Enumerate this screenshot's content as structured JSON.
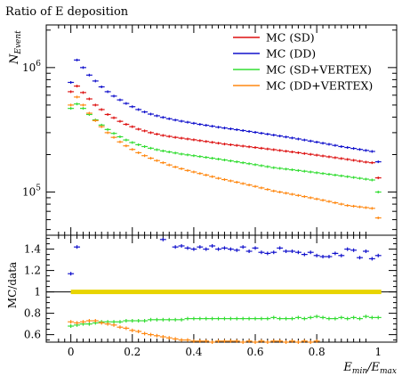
{
  "chart_data": [
    {
      "type": "scatter",
      "title": "Ratio of E deposition",
      "ylabel_main": "N",
      "ylabel_sub": "Event",
      "yscale": "log",
      "ylim": [
        45000,
        2200000
      ],
      "xlim": [
        -0.08,
        1.06
      ],
      "yticks_major": [
        {
          "value": 100000,
          "base": "10",
          "exp": "5"
        },
        {
          "value": 1000000,
          "base": "10",
          "exp": "6"
        }
      ],
      "legend_position": "top-right",
      "series": [
        {
          "name": "MC (SD)",
          "color": "#dd1111",
          "x": [
            0.0,
            0.02,
            0.04,
            0.06,
            0.08,
            0.1,
            0.12,
            0.14,
            0.16,
            0.18,
            0.2,
            0.22,
            0.24,
            0.26,
            0.28,
            0.3,
            0.32,
            0.34,
            0.36,
            0.38,
            0.4,
            0.42,
            0.44,
            0.46,
            0.48,
            0.5,
            0.52,
            0.54,
            0.56,
            0.58,
            0.6,
            0.62,
            0.64,
            0.66,
            0.68,
            0.7,
            0.72,
            0.74,
            0.76,
            0.78,
            0.8,
            0.82,
            0.84,
            0.86,
            0.88,
            0.9,
            0.92,
            0.94,
            0.96,
            0.98,
            1.0
          ],
          "y": [
            640000,
            710000,
            630000,
            560000,
            500000,
            460000,
            420000,
            395000,
            370000,
            350000,
            335000,
            320000,
            310000,
            300000,
            292000,
            285000,
            280000,
            275000,
            271000,
            267000,
            263000,
            259000,
            255000,
            251000,
            247000,
            243000,
            240000,
            237000,
            234000,
            231000,
            228000,
            225000,
            222000,
            219000,
            216000,
            213000,
            210000,
            207000,
            204000,
            201000,
            198000,
            195000,
            192000,
            189000,
            186000,
            183000,
            180000,
            177000,
            174000,
            172000,
            130000
          ]
        },
        {
          "name": "MC (DD)",
          "color": "#1111cc",
          "x": [
            0.0,
            0.02,
            0.04,
            0.06,
            0.08,
            0.1,
            0.12,
            0.14,
            0.16,
            0.18,
            0.2,
            0.22,
            0.24,
            0.26,
            0.28,
            0.3,
            0.32,
            0.34,
            0.36,
            0.38,
            0.4,
            0.42,
            0.44,
            0.46,
            0.48,
            0.5,
            0.52,
            0.54,
            0.56,
            0.58,
            0.6,
            0.62,
            0.64,
            0.66,
            0.68,
            0.7,
            0.72,
            0.74,
            0.76,
            0.78,
            0.8,
            0.82,
            0.84,
            0.86,
            0.88,
            0.9,
            0.92,
            0.94,
            0.96,
            0.98,
            1.0
          ],
          "y": [
            760000,
            1150000,
            1000000,
            870000,
            780000,
            700000,
            640000,
            590000,
            550000,
            515000,
            485000,
            460000,
            440000,
            423000,
            410000,
            398000,
            388000,
            379000,
            371000,
            364000,
            357000,
            350000,
            344000,
            338000,
            332000,
            327000,
            322000,
            317000,
            312000,
            307000,
            302000,
            297000,
            292000,
            287000,
            282000,
            277000,
            272000,
            267000,
            262000,
            257000,
            252000,
            247000,
            242000,
            237000,
            232000,
            228000,
            224000,
            220000,
            216000,
            212000,
            175000
          ]
        },
        {
          "name": "MC (SD+VERTEX)",
          "color": "#33dd33",
          "x": [
            0.0,
            0.02,
            0.04,
            0.06,
            0.08,
            0.1,
            0.12,
            0.14,
            0.16,
            0.18,
            0.2,
            0.22,
            0.24,
            0.26,
            0.28,
            0.3,
            0.32,
            0.34,
            0.36,
            0.38,
            0.4,
            0.42,
            0.44,
            0.46,
            0.48,
            0.5,
            0.52,
            0.54,
            0.56,
            0.58,
            0.6,
            0.62,
            0.64,
            0.66,
            0.68,
            0.7,
            0.72,
            0.74,
            0.76,
            0.78,
            0.8,
            0.82,
            0.84,
            0.86,
            0.88,
            0.9,
            0.92,
            0.94,
            0.96,
            0.98,
            1.0
          ],
          "y": [
            470000,
            510000,
            470000,
            420000,
            380000,
            345000,
            318000,
            296000,
            278000,
            262000,
            250000,
            240000,
            232000,
            225000,
            219000,
            214000,
            210000,
            206000,
            202000,
            199000,
            196000,
            193000,
            190000,
            187000,
            184000,
            181000,
            178000,
            175000,
            172000,
            169000,
            166000,
            163000,
            160000,
            157000,
            155000,
            153000,
            151000,
            149000,
            147000,
            145000,
            143000,
            141000,
            139000,
            137000,
            135000,
            133000,
            131000,
            129000,
            127000,
            125000,
            100000
          ]
        },
        {
          "name": "MC (DD+VERTEX)",
          "color": "#ff8811",
          "x": [
            0.0,
            0.02,
            0.04,
            0.06,
            0.08,
            0.1,
            0.12,
            0.14,
            0.16,
            0.18,
            0.2,
            0.22,
            0.24,
            0.26,
            0.28,
            0.3,
            0.32,
            0.34,
            0.36,
            0.38,
            0.4,
            0.42,
            0.44,
            0.46,
            0.48,
            0.5,
            0.52,
            0.54,
            0.56,
            0.58,
            0.6,
            0.62,
            0.64,
            0.66,
            0.68,
            0.7,
            0.72,
            0.74,
            0.76,
            0.78,
            0.8,
            0.82,
            0.84,
            0.86,
            0.88,
            0.9,
            0.92,
            0.94,
            0.96,
            0.98,
            1.0
          ],
          "y": [
            500000,
            580000,
            500000,
            430000,
            375000,
            335000,
            300000,
            275000,
            253000,
            235000,
            220000,
            207000,
            196000,
            187000,
            179000,
            172000,
            165000,
            159000,
            154000,
            149000,
            145000,
            141000,
            137000,
            133000,
            129000,
            126000,
            123000,
            120000,
            117000,
            114000,
            111000,
            108000,
            105000,
            102000,
            100000,
            98000,
            96000,
            94000,
            92000,
            90000,
            88000,
            86000,
            84000,
            82000,
            80000,
            78000,
            77000,
            76000,
            75000,
            74000,
            62000
          ]
        }
      ]
    },
    {
      "type": "scatter",
      "ylabel": "MC/data",
      "xlabel_main": "E",
      "xlabel_sub1": "min",
      "xlabel_sep": "/E",
      "xlabel_sub2": "max",
      "ylim": [
        0.53,
        1.53
      ],
      "xlim": [
        -0.08,
        1.06
      ],
      "yticks": [
        "0.6",
        "0.8",
        "1",
        "1.2",
        "1.4"
      ],
      "xticks": [
        "0",
        "0.2",
        "0.4",
        "0.6",
        "0.8",
        "1"
      ],
      "reference_line": {
        "value": 1,
        "color": "#e8d400"
      },
      "series": [
        {
          "color": "#1111cc",
          "x": [
            0.0,
            0.02,
            0.3,
            0.34,
            0.36,
            0.38,
            0.4,
            0.42,
            0.44,
            0.46,
            0.48,
            0.5,
            0.52,
            0.54,
            0.56,
            0.58,
            0.6,
            0.62,
            0.64,
            0.66,
            0.68,
            0.7,
            0.72,
            0.74,
            0.76,
            0.78,
            0.8,
            0.82,
            0.84,
            0.86,
            0.88,
            0.9,
            0.92,
            0.94,
            0.96,
            0.98,
            1.0
          ],
          "y": [
            1.17,
            1.42,
            1.49,
            1.42,
            1.43,
            1.41,
            1.4,
            1.42,
            1.4,
            1.43,
            1.4,
            1.41,
            1.4,
            1.39,
            1.42,
            1.38,
            1.41,
            1.37,
            1.36,
            1.37,
            1.41,
            1.38,
            1.38,
            1.37,
            1.35,
            1.37,
            1.34,
            1.33,
            1.33,
            1.36,
            1.34,
            1.4,
            1.39,
            1.32,
            1.38,
            1.31,
            1.34
          ]
        },
        {
          "color": "#33dd33",
          "x": [
            0.0,
            0.02,
            0.04,
            0.06,
            0.08,
            0.1,
            0.12,
            0.14,
            0.16,
            0.18,
            0.2,
            0.22,
            0.24,
            0.26,
            0.28,
            0.3,
            0.32,
            0.34,
            0.36,
            0.38,
            0.4,
            0.42,
            0.44,
            0.46,
            0.48,
            0.5,
            0.52,
            0.54,
            0.56,
            0.58,
            0.6,
            0.62,
            0.64,
            0.66,
            0.68,
            0.7,
            0.72,
            0.74,
            0.76,
            0.78,
            0.8,
            0.82,
            0.84,
            0.86,
            0.88,
            0.9,
            0.92,
            0.94,
            0.96,
            0.98,
            1.0
          ],
          "y": [
            0.68,
            0.69,
            0.7,
            0.7,
            0.71,
            0.72,
            0.72,
            0.72,
            0.72,
            0.73,
            0.73,
            0.73,
            0.73,
            0.74,
            0.74,
            0.74,
            0.74,
            0.74,
            0.74,
            0.75,
            0.75,
            0.75,
            0.75,
            0.75,
            0.75,
            0.75,
            0.75,
            0.75,
            0.75,
            0.75,
            0.75,
            0.75,
            0.75,
            0.76,
            0.75,
            0.75,
            0.75,
            0.76,
            0.75,
            0.76,
            0.77,
            0.76,
            0.75,
            0.75,
            0.76,
            0.75,
            0.76,
            0.75,
            0.77,
            0.76,
            0.76
          ]
        },
        {
          "color": "#ff8811",
          "x": [
            0.0,
            0.02,
            0.04,
            0.06,
            0.08,
            0.1,
            0.12,
            0.14,
            0.16,
            0.18,
            0.2,
            0.22,
            0.24,
            0.26,
            0.28,
            0.3,
            0.32,
            0.34,
            0.36,
            0.38,
            0.4,
            0.42,
            0.44,
            0.46,
            0.48,
            0.5,
            0.52,
            0.54,
            0.56,
            0.58,
            0.6,
            0.62,
            0.64,
            0.66,
            0.68,
            0.7,
            0.72,
            0.74,
            0.76,
            0.78,
            0.8
          ],
          "y": [
            0.72,
            0.71,
            0.72,
            0.73,
            0.73,
            0.71,
            0.7,
            0.69,
            0.67,
            0.66,
            0.64,
            0.63,
            0.61,
            0.6,
            0.59,
            0.58,
            0.57,
            0.56,
            0.55,
            0.55,
            0.54,
            0.54,
            0.54,
            0.53,
            0.54,
            0.54,
            0.54,
            0.54,
            0.53,
            0.54,
            0.53,
            0.54,
            0.53,
            0.54,
            0.54,
            0.53,
            0.54,
            0.53,
            0.54,
            0.53,
            0.54
          ]
        }
      ]
    }
  ]
}
